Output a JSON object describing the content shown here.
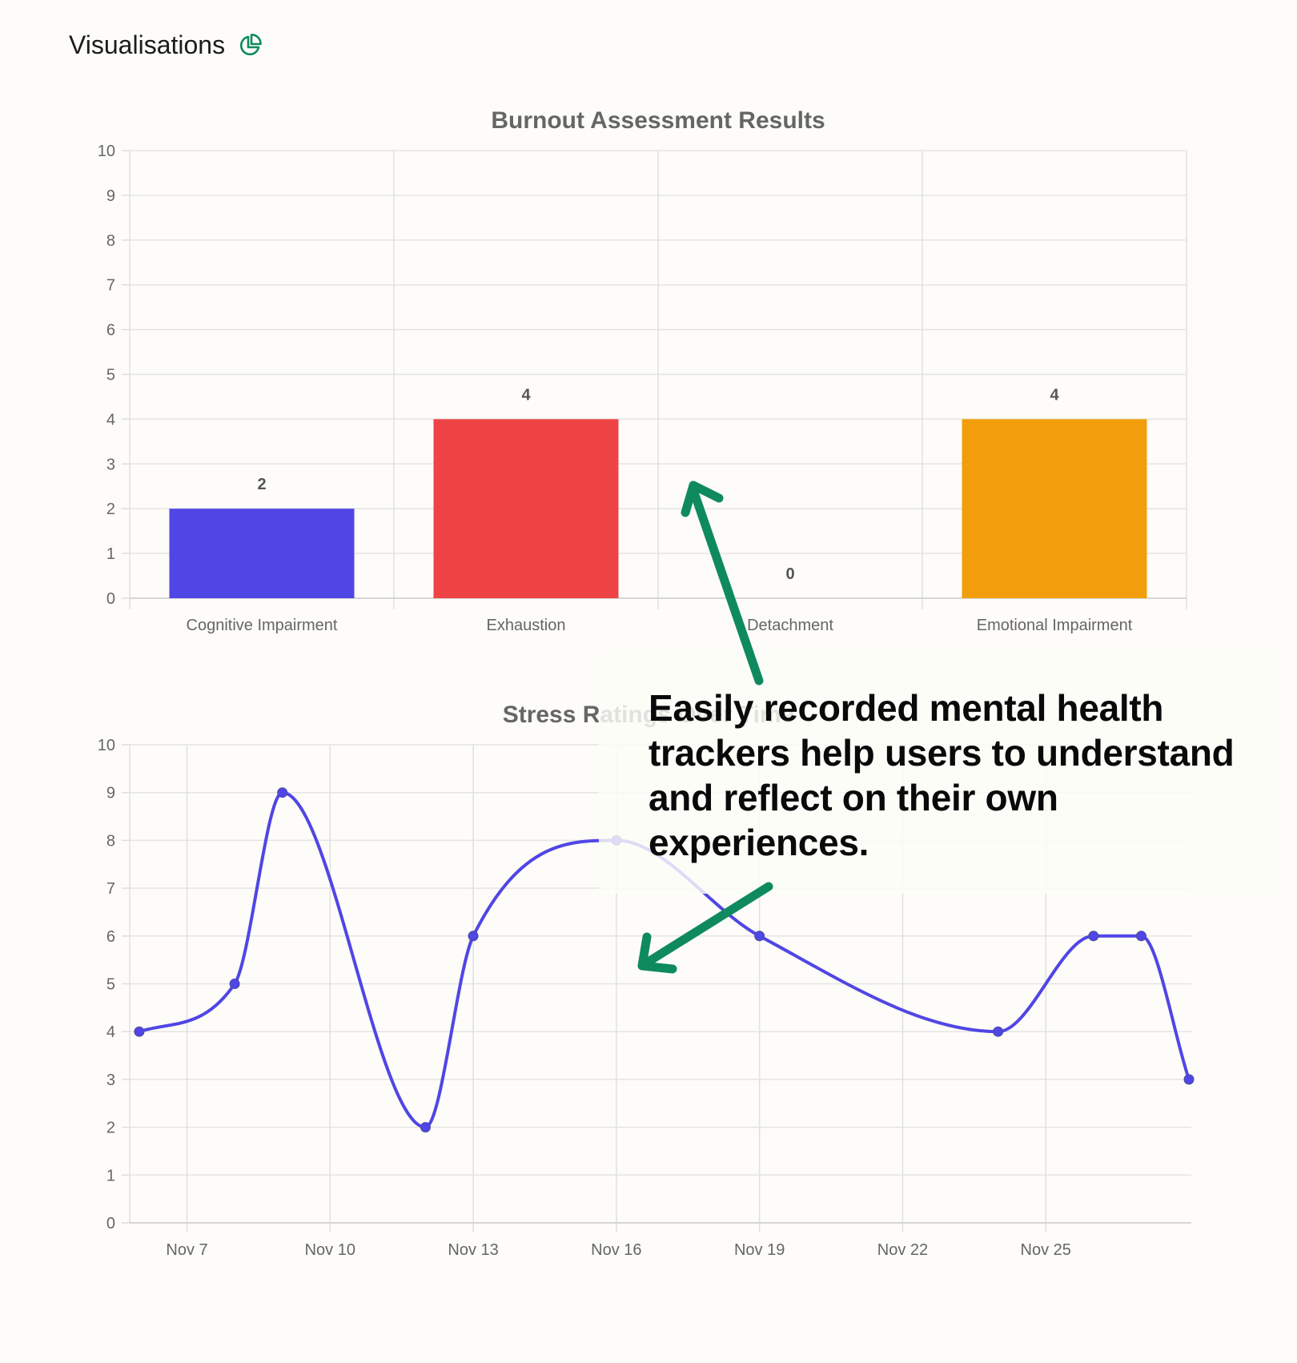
{
  "header": {
    "title": "Visualisations",
    "icon": "pie-chart-icon",
    "icon_color": "#0f8a5f"
  },
  "chart_data": [
    {
      "type": "bar",
      "title": "Burnout Assessment Results",
      "categories": [
        "Cognitive Impairment",
        "Exhaustion",
        "Detachment",
        "Emotional Impairment"
      ],
      "values": [
        2,
        4,
        0,
        4
      ],
      "colors": [
        "#5046e5",
        "#ef4446",
        "#22c55e",
        "#f29e0c"
      ],
      "xlabel": "",
      "ylabel": "",
      "ylim": [
        0,
        10
      ],
      "yticks": [
        "0",
        "1",
        "2",
        "3",
        "4",
        "5",
        "6",
        "7",
        "8",
        "9",
        "10"
      ],
      "data_labels": [
        "2",
        "4",
        "0",
        "4"
      ],
      "grid": true,
      "legend": "none"
    },
    {
      "type": "line",
      "title": "Stress Ratings Over Time",
      "x": [
        "2023-11-06",
        "2023-11-08",
        "2023-11-09",
        "2023-11-12",
        "2023-11-13",
        "2023-11-16",
        "2023-11-19",
        "2023-11-24",
        "2023-11-26",
        "2023-11-27",
        "2023-11-28"
      ],
      "series": [
        {
          "values": [
            4,
            5,
            9,
            2,
            6,
            8,
            6,
            4,
            6,
            6,
            3
          ],
          "color": "#5046e5"
        }
      ],
      "xticks": [
        "Nov 7",
        "Nov 10",
        "Nov 13",
        "Nov 16",
        "Nov 19",
        "Nov 22",
        "Nov 25"
      ],
      "xlabel": "",
      "ylabel": "",
      "ylim": [
        0,
        10
      ],
      "yticks": [
        "0",
        "1",
        "2",
        "3",
        "4",
        "5",
        "6",
        "7",
        "8",
        "9",
        "10"
      ],
      "grid": true,
      "legend": "none"
    }
  ],
  "annotation": {
    "lines": [
      "Easily recorded mental health",
      "trackers help users to understand",
      "and reflect on their own",
      "experiences."
    ],
    "arrow_color": "#0f8a5f"
  }
}
